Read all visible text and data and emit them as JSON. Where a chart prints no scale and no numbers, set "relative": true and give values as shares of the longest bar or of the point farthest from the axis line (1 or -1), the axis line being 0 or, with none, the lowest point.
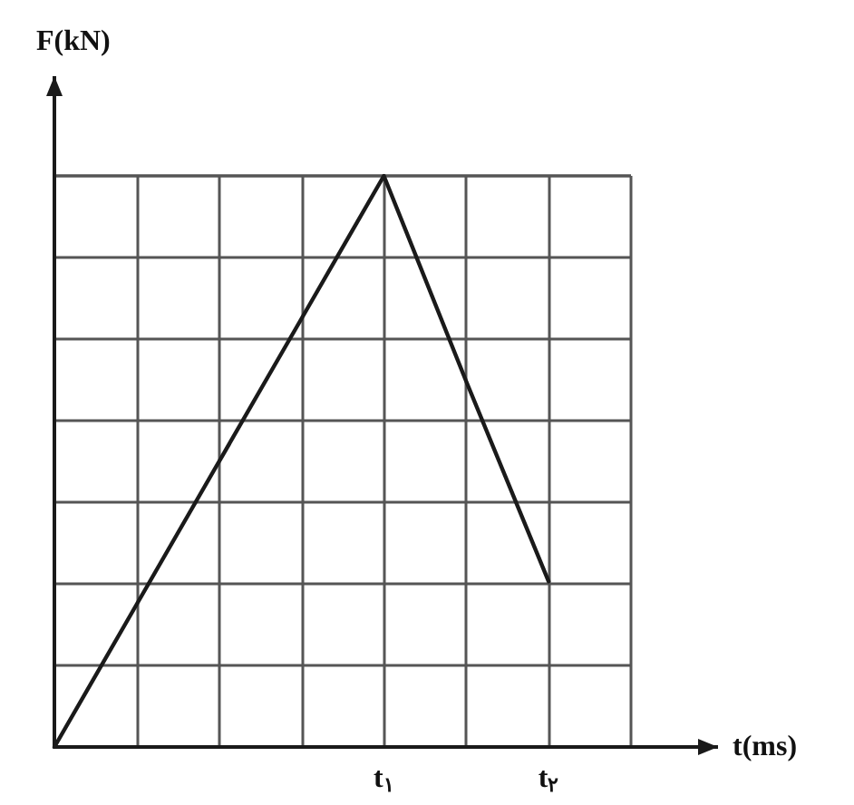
{
  "chart_data": {
    "type": "line",
    "xlabel": "t(ms)",
    "ylabel": "F(kN)",
    "relative": true,
    "grid": true,
    "marker": "none",
    "categories": [
      null,
      null,
      null,
      null,
      "t$_{۱}$",
      null,
      "t$_{۲}$",
      null
    ],
    "series": [
      {
        "color": "#1a1a1a",
        "values": [
          0,
          0.25,
          0.5,
          0.75,
          1,
          0.64,
          0.29,
          null
        ]
      }
    ]
  }
}
